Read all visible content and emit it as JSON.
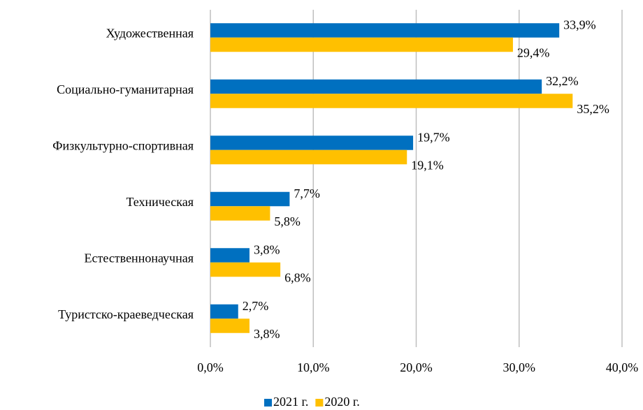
{
  "chart_data": {
    "type": "hbar",
    "categories": [
      "Художественная",
      "Социально-гуманитарная",
      "Физкультурно-спортивная",
      "Техническая",
      "Естественнонаучная",
      "Туристско-краеведческая"
    ],
    "series": [
      {
        "name": "2021 г.",
        "color": "#0070c0",
        "values": [
          33.9,
          32.2,
          19.7,
          7.7,
          3.8,
          2.7
        ],
        "value_labels": [
          "33,9%",
          "32,2%",
          "19,7%",
          "7,7%",
          "3,8%",
          "2,7%"
        ]
      },
      {
        "name": "2020 г.",
        "color": "#ffc000",
        "values": [
          29.4,
          35.2,
          19.1,
          5.8,
          6.8,
          3.8
        ],
        "value_labels": [
          "29,4%",
          "35,2%",
          "19,1%",
          "5,8%",
          "6,8%",
          "3,8%"
        ]
      }
    ],
    "xlim": [
      0,
      40
    ],
    "xticks": [
      {
        "value": 0,
        "label": "0,0%"
      },
      {
        "value": 10,
        "label": "10,0%"
      },
      {
        "value": 20,
        "label": "20,0%"
      },
      {
        "value": 30,
        "label": "30,0%"
      },
      {
        "value": 40,
        "label": "40,0%"
      }
    ],
    "grid": true,
    "legend": "bottom"
  }
}
